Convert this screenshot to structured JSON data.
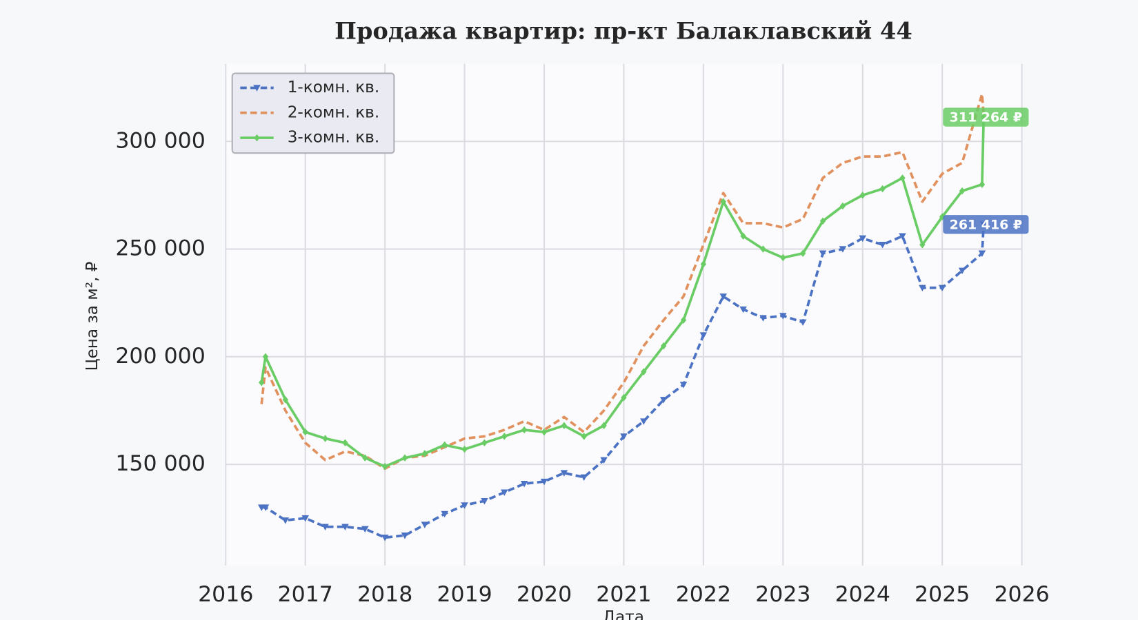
{
  "chart_data": {
    "type": "line",
    "title": "Продажа квартир: пр-кт Балаклавский 44",
    "xlabel": "Дата",
    "ylabel": "Цена за м², ₽",
    "x": [
      2016.45,
      2016.5,
      2016.75,
      2017.0,
      2017.25,
      2017.5,
      2017.75,
      2018.0,
      2018.25,
      2018.5,
      2018.75,
      2019.0,
      2019.25,
      2019.5,
      2019.75,
      2020.0,
      2020.25,
      2020.5,
      2020.75,
      2021.0,
      2021.25,
      2021.5,
      2021.75,
      2022.0,
      2022.25,
      2022.5,
      2022.75,
      2023.0,
      2023.25,
      2023.5,
      2023.75,
      2024.0,
      2024.25,
      2024.5,
      2024.75,
      2025.0,
      2025.25,
      2025.5,
      2025.52
    ],
    "series": [
      {
        "name": "1-комн. кв.",
        "color": "#4c72c4",
        "dash": true,
        "marker": "triangle",
        "values": [
          130000,
          130000,
          124000,
          125000,
          121000,
          121000,
          120000,
          116000,
          117000,
          122000,
          127000,
          131000,
          133000,
          137000,
          141000,
          142000,
          146000,
          144000,
          152000,
          163000,
          170000,
          180000,
          187000,
          210000,
          228000,
          222000,
          218000,
          219000,
          216000,
          248000,
          250000,
          255000,
          252000,
          256000,
          232000,
          232000,
          240000,
          248000,
          261416
        ],
        "value_labels": [
          null,
          null,
          null,
          null,
          null,
          null,
          null,
          null,
          null,
          null,
          null,
          null,
          null,
          null,
          null,
          null,
          null,
          null,
          null,
          null,
          null,
          null,
          null,
          null,
          null,
          null,
          null,
          null,
          null,
          null,
          null,
          null,
          null,
          null,
          null,
          null,
          null,
          null,
          "261 416 ₽"
        ]
      },
      {
        "name": "2-комн. кв.",
        "color": "#e1915e",
        "dash": true,
        "marker": "none",
        "values": [
          178000,
          195000,
          175000,
          160000,
          152000,
          156000,
          154000,
          148000,
          153000,
          154000,
          158000,
          162000,
          163000,
          166000,
          170000,
          166000,
          172000,
          165000,
          175000,
          188000,
          205000,
          217000,
          228000,
          252000,
          276000,
          262000,
          262000,
          260000,
          264000,
          283000,
          290000,
          293000,
          293000,
          295000,
          272000,
          285000,
          290000,
          322000,
          312000
        ]
      },
      {
        "name": "3-комн. кв.",
        "color": "#6acc64",
        "dash": false,
        "marker": "diamond",
        "values": [
          188000,
          200000,
          180000,
          165000,
          162000,
          160000,
          153000,
          149000,
          153000,
          155000,
          159000,
          157000,
          160000,
          163000,
          166000,
          165000,
          168000,
          163000,
          168000,
          181000,
          193000,
          205000,
          217000,
          243000,
          272000,
          256000,
          250000,
          246000,
          248000,
          263000,
          270000,
          275000,
          278000,
          283000,
          252000,
          265000,
          277000,
          280000,
          311264
        ],
        "value_labels": [
          null,
          null,
          null,
          null,
          null,
          null,
          null,
          null,
          null,
          null,
          null,
          null,
          null,
          null,
          null,
          null,
          null,
          null,
          null,
          null,
          null,
          null,
          null,
          null,
          null,
          null,
          null,
          null,
          null,
          null,
          null,
          null,
          null,
          null,
          null,
          null,
          null,
          null,
          "311 264 ₽"
        ]
      }
    ],
    "xlim": [
      2016,
      2026
    ],
    "xticks": [
      2016,
      2017,
      2018,
      2019,
      2020,
      2021,
      2022,
      2023,
      2024,
      2025,
      2026
    ],
    "ylim": [
      103000,
      336000
    ],
    "yticks": [
      {
        "value": 150000,
        "label": "150 000"
      },
      {
        "value": 200000,
        "label": "200 000"
      },
      {
        "value": 250000,
        "label": "250 000"
      },
      {
        "value": 300000,
        "label": "300 000"
      }
    ],
    "grid": true,
    "legend": "upper-left"
  }
}
